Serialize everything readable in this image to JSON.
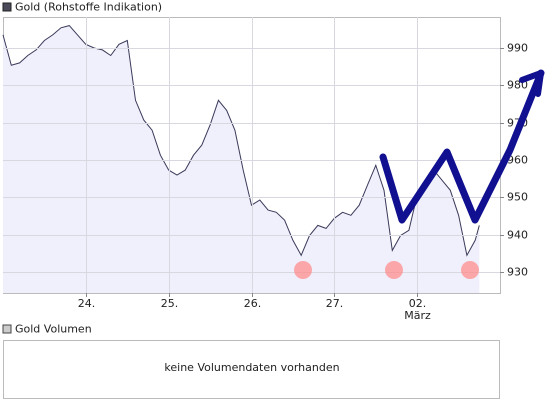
{
  "chart_data": {
    "type": "line",
    "series": [
      {
        "name": "Gold (Rohstoffe Indikation)",
        "color": "#3a3a5a",
        "fill": "#f0f0fc",
        "x": [
          0,
          0.1,
          0.2,
          0.3,
          0.4,
          0.5,
          0.6,
          0.7,
          0.8,
          0.9,
          1.0,
          1.1,
          1.2,
          1.3,
          1.4,
          1.5,
          1.6,
          1.7,
          1.8,
          1.9,
          2.0,
          2.1,
          2.2,
          2.3,
          2.4,
          2.5,
          2.6,
          2.7,
          2.8,
          2.9,
          3.0,
          3.1,
          3.2,
          3.3,
          3.4,
          3.5,
          3.6,
          3.7,
          3.8,
          3.9,
          4.0,
          4.1,
          4.2,
          4.3,
          4.4,
          4.5,
          4.6,
          4.7,
          4.8,
          4.9,
          5.0,
          5.1,
          5.2,
          5.3,
          5.4,
          5.5,
          5.6,
          5.7,
          5.75
        ],
        "values": [
          993.5,
          985.4,
          986,
          988,
          989.5,
          992,
          993.5,
          995.4,
          996,
          993.5,
          991,
          990,
          989.5,
          988,
          991,
          992,
          976,
          970.7,
          968,
          961.3,
          957.3,
          956,
          957.3,
          961.3,
          964,
          969.4,
          976,
          973.3,
          968,
          957.3,
          947.9,
          949.3,
          946.6,
          946,
          943.9,
          938.5,
          934.5,
          939.8,
          942.5,
          941.7,
          944.4,
          946,
          945.2,
          947.9,
          953.3,
          958.6,
          951.9,
          935.8,
          939.8,
          941.2,
          950.6,
          953.3,
          957.3,
          954.6,
          951.9,
          945.2,
          934.5,
          938.5,
          942.5
        ]
      }
    ],
    "xlim": [
      0,
      6
    ],
    "xticks": [
      {
        "value": 1,
        "label": "24."
      },
      {
        "value": 2,
        "label": "25."
      },
      {
        "value": 3,
        "label": "26."
      },
      {
        "value": 4,
        "label": "27."
      },
      {
        "value": 5,
        "label": "02."
      }
    ],
    "annotations": [
      "März"
    ],
    "ylim": [
      924.4,
      998.3
    ],
    "yticks": [
      930,
      940,
      950,
      960,
      970,
      980,
      990
    ],
    "grid": true
  },
  "volume_panel": {
    "title": "Gold Volumen",
    "message": "keine Volumendaten vorhanden"
  }
}
